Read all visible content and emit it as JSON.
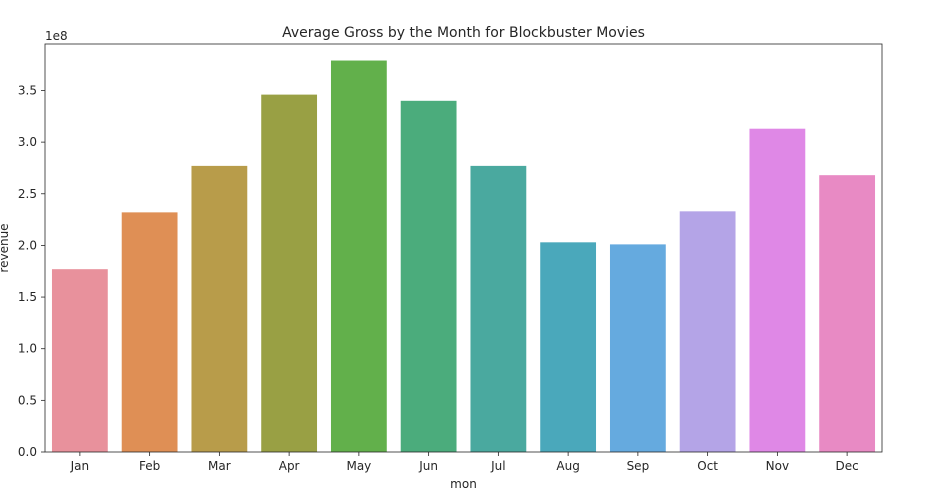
{
  "chart_data": {
    "type": "bar",
    "title": "Average Gross by the Month for Blockbuster Movies",
    "xlabel": "mon",
    "ylabel": "revenue",
    "offset_label": "1e8",
    "categories": [
      "Jan",
      "Feb",
      "Mar",
      "Apr",
      "May",
      "Jun",
      "Jul",
      "Aug",
      "Sep",
      "Oct",
      "Nov",
      "Dec"
    ],
    "values": [
      1.77,
      2.32,
      2.77,
      3.46,
      3.79,
      3.4,
      2.77,
      2.03,
      2.01,
      2.33,
      3.13,
      2.68
    ],
    "value_scale": 100000000,
    "ylim": [
      0,
      3.95
    ],
    "yticks": [
      0.0,
      0.5,
      1.0,
      1.5,
      2.0,
      2.5,
      3.0,
      3.5
    ],
    "ytick_labels": [
      "0.0",
      "0.5",
      "1.0",
      "1.5",
      "2.0",
      "2.5",
      "3.0",
      "3.5"
    ],
    "colors": [
      "#e8919c",
      "#df8f55",
      "#b89c4a",
      "#99a044",
      "#62b04b",
      "#4bac7c",
      "#4aa99f",
      "#4aa8bb",
      "#65aadf",
      "#b4a4e7",
      "#df88e6",
      "#e88ac4"
    ],
    "grid": false,
    "legend": "none"
  }
}
